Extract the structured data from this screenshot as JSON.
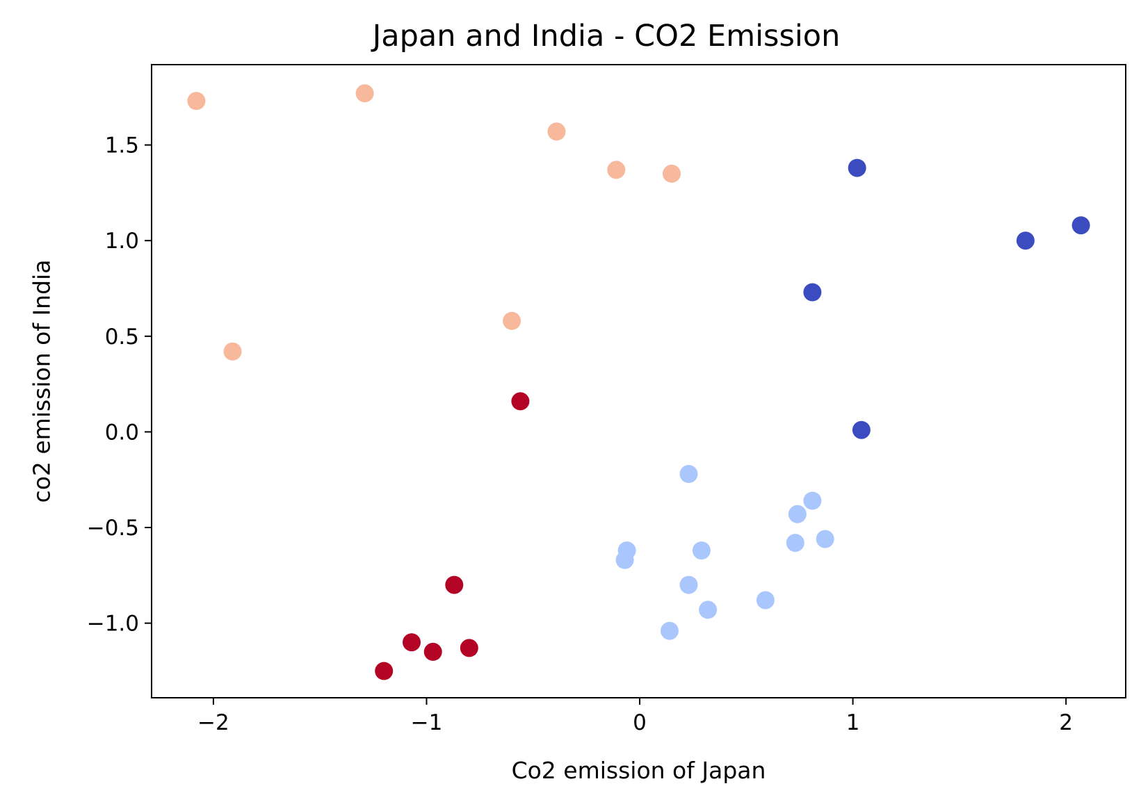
{
  "chart_data": {
    "type": "scatter",
    "title": "Japan and India - CO2 Emission",
    "xlabel": "Co2 emission of Japan",
    "ylabel": "co2 emission of India",
    "xlim": [
      -2.29,
      2.28
    ],
    "ylim": [
      -1.39,
      1.92
    ],
    "grid": false,
    "legend": "none",
    "x_ticks": [
      {
        "value": -2,
        "label": "−2"
      },
      {
        "value": -1,
        "label": "−1"
      },
      {
        "value": 0,
        "label": "0"
      },
      {
        "value": 1,
        "label": "1"
      },
      {
        "value": 2,
        "label": "2"
      }
    ],
    "y_ticks": [
      {
        "value": -1.0,
        "label": "−1.0"
      },
      {
        "value": -0.5,
        "label": "−0.5"
      },
      {
        "value": 0.0,
        "label": "0.0"
      },
      {
        "value": 0.5,
        "label": "0.5"
      },
      {
        "value": 1.0,
        "label": "1.0"
      },
      {
        "value": 1.5,
        "label": "1.5"
      }
    ],
    "cluster_colors": [
      "#3b4cc0",
      "#aac7fd",
      "#f7b89c",
      "#b40426"
    ],
    "points": [
      {
        "x": 1.02,
        "y": 1.38,
        "cluster": 0
      },
      {
        "x": 2.07,
        "y": 1.08,
        "cluster": 0
      },
      {
        "x": 1.81,
        "y": 1.0,
        "cluster": 0
      },
      {
        "x": 0.81,
        "y": 0.73,
        "cluster": 0
      },
      {
        "x": 1.04,
        "y": 0.01,
        "cluster": 0
      },
      {
        "x": 0.23,
        "y": -0.22,
        "cluster": 1
      },
      {
        "x": 0.81,
        "y": -0.36,
        "cluster": 1
      },
      {
        "x": 0.74,
        "y": -0.43,
        "cluster": 1
      },
      {
        "x": 0.87,
        "y": -0.56,
        "cluster": 1
      },
      {
        "x": 0.73,
        "y": -0.58,
        "cluster": 1
      },
      {
        "x": -0.06,
        "y": -0.62,
        "cluster": 1
      },
      {
        "x": 0.29,
        "y": -0.62,
        "cluster": 1
      },
      {
        "x": -0.07,
        "y": -0.67,
        "cluster": 1
      },
      {
        "x": 0.23,
        "y": -0.8,
        "cluster": 1
      },
      {
        "x": 0.59,
        "y": -0.88,
        "cluster": 1
      },
      {
        "x": 0.32,
        "y": -0.93,
        "cluster": 1
      },
      {
        "x": 0.14,
        "y": -1.04,
        "cluster": 1
      },
      {
        "x": -2.08,
        "y": 1.73,
        "cluster": 2
      },
      {
        "x": -1.29,
        "y": 1.77,
        "cluster": 2
      },
      {
        "x": -0.39,
        "y": 1.57,
        "cluster": 2
      },
      {
        "x": -0.11,
        "y": 1.37,
        "cluster": 2
      },
      {
        "x": 0.15,
        "y": 1.35,
        "cluster": 2
      },
      {
        "x": -0.6,
        "y": 0.58,
        "cluster": 2
      },
      {
        "x": -1.91,
        "y": 0.42,
        "cluster": 2
      },
      {
        "x": -0.56,
        "y": 0.16,
        "cluster": 3
      },
      {
        "x": -0.87,
        "y": -0.8,
        "cluster": 3
      },
      {
        "x": -1.07,
        "y": -1.1,
        "cluster": 3
      },
      {
        "x": -0.97,
        "y": -1.15,
        "cluster": 3
      },
      {
        "x": -0.8,
        "y": -1.13,
        "cluster": 3
      },
      {
        "x": -1.2,
        "y": -1.25,
        "cluster": 3
      }
    ]
  }
}
